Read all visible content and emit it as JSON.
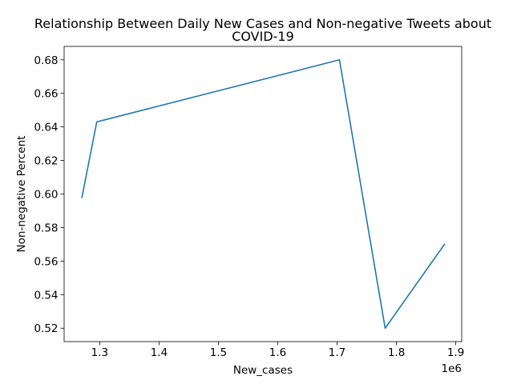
{
  "chart_data": {
    "type": "line",
    "title_lines": [
      "Relationship Between Daily New Cases and Non-negative Tweets about",
      "COVID-19"
    ],
    "xlabel": "New_cases",
    "ylabel": "Non-negative Percent",
    "x_offset_text": "1e6",
    "x_scale": 1000000,
    "xlim": [
      1240000,
      1910000
    ],
    "ylim": [
      0.512,
      0.688
    ],
    "x_ticks": [
      1300000,
      1400000,
      1500000,
      1600000,
      1700000,
      1800000,
      1900000
    ],
    "x_tick_labels": [
      "1.3",
      "1.4",
      "1.5",
      "1.6",
      "1.7",
      "1.8",
      "1.9"
    ],
    "y_ticks": [
      0.52,
      0.54,
      0.56,
      0.58,
      0.6,
      0.62,
      0.64,
      0.66,
      0.68
    ],
    "y_tick_labels": [
      "0.52",
      "0.54",
      "0.56",
      "0.58",
      "0.60",
      "0.62",
      "0.64",
      "0.66",
      "0.68"
    ],
    "grid": false,
    "series": [
      {
        "color": "#1f77b4",
        "x": [
          1270000,
          1295000,
          1704000,
          1781000,
          1881000
        ],
        "y": [
          0.598,
          0.643,
          0.68,
          0.52,
          0.57
        ]
      }
    ]
  }
}
